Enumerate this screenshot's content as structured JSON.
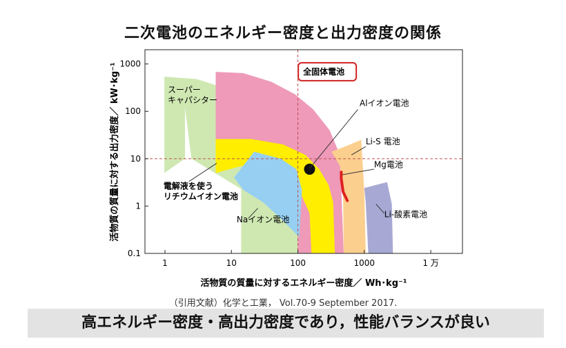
{
  "title": "二次電池のエネルギー密度と出力密度の関係",
  "caption": "（引用文献）化学と工業， Vol.70-9 September 2017.",
  "banner": "高エネルギー密度・高出力密度であり，性能バランスが良い",
  "chart_data": {
    "type": "area",
    "xlabel": "活物質の質量に対するエネルギー密度／ Wh･kg⁻¹",
    "ylabel": "活物質の質量に対する出力密度／ kW･kg⁻¹",
    "x_scale": "log",
    "y_scale": "log",
    "xlim": [
      0.5,
      30000
    ],
    "ylim": [
      0.1,
      2000
    ],
    "x_ticks": [
      {
        "value": 1,
        "label": "1"
      },
      {
        "value": 10,
        "label": "10"
      },
      {
        "value": 100,
        "label": "100"
      },
      {
        "value": 1000,
        "label": "1000"
      },
      {
        "value": 10000,
        "label": "1 万"
      }
    ],
    "y_ticks": [
      {
        "value": 0.1,
        "label": "0.1"
      },
      {
        "value": 1,
        "label": "1"
      },
      {
        "value": 10,
        "label": "10"
      },
      {
        "value": 100,
        "label": "100"
      },
      {
        "value": 1000,
        "label": "1000"
      }
    ],
    "reference_lines": {
      "x": 100,
      "y": 10
    },
    "regions": [
      {
        "name": "スーパーキャパシター",
        "label_lines": [
          "スーパー",
          "キャパシター"
        ],
        "color": "#cfe8b2",
        "polygon": [
          [
            2,
            120
          ],
          [
            2,
            10
          ],
          [
            0.98,
            5
          ],
          [
            0.98,
            540
          ],
          [
            3,
            480
          ],
          [
            10,
            280
          ],
          [
            40,
            90
          ],
          [
            100,
            30
          ],
          [
            180,
            0.1
          ],
          [
            14,
            0.1
          ],
          [
            14,
            2.3
          ],
          [
            2.5,
            10
          ]
        ],
        "label_pos": [
          1.1,
          250
        ]
      },
      {
        "name": "全固体電池",
        "label_lines": [
          "全固体電池"
        ],
        "color": "#ee9ab8",
        "polygon": [
          [
            5.8,
            680
          ],
          [
            15,
            640
          ],
          [
            40,
            420
          ],
          [
            90,
            230
          ],
          [
            170,
            110
          ],
          [
            300,
            40
          ],
          [
            430,
            12
          ],
          [
            490,
            0.1
          ],
          [
            100,
            0.1
          ],
          [
            100,
            5
          ],
          [
            70,
            9
          ],
          [
            35,
            14
          ],
          [
            16,
            20
          ],
          [
            5.8,
            25
          ]
        ],
        "label_pos": [
          120,
          600
        ],
        "boxed": true
      },
      {
        "name": "電解液を使うリチウムイオン電池",
        "label_lines": [
          "電解液を使う",
          "リチウムイオン電池"
        ],
        "color": "#ffee00",
        "polygon": [
          [
            5.8,
            26
          ],
          [
            20,
            26
          ],
          [
            60,
            20
          ],
          [
            130,
            12
          ],
          [
            210,
            6
          ],
          [
            290,
            2.8
          ],
          [
            340,
            1.2
          ],
          [
            360,
            0.1
          ],
          [
            160,
            0.1
          ],
          [
            150,
            0.7
          ],
          [
            100,
            2.5
          ],
          [
            50,
            5
          ],
          [
            20,
            8
          ],
          [
            5.8,
            5
          ]
        ],
        "label_pos": [
          0.95,
          2.3
        ]
      },
      {
        "name": "Naイオン電池",
        "label_lines": [
          "Naイオン電池"
        ],
        "color": "#96cff2",
        "polygon": [
          [
            22,
            14
          ],
          [
            55,
            10
          ],
          [
            95,
            6
          ],
          [
            115,
            2.2
          ],
          [
            105,
            0.22
          ],
          [
            55,
            0.55
          ],
          [
            30,
            1.2
          ],
          [
            15,
            2.2
          ],
          [
            11,
            4
          ]
        ],
        "label_pos": [
          12,
          0.45
        ]
      },
      {
        "name": "Li-S電池",
        "label_lines": [
          "Li-S 電池"
        ],
        "color": "#fbcf8e",
        "polygon": [
          [
            320,
            14
          ],
          [
            560,
            19
          ],
          [
            900,
            25
          ],
          [
            1000,
            2
          ],
          [
            1050,
            0.1
          ],
          [
            490,
            0.1
          ],
          [
            480,
            1.5
          ],
          [
            430,
            7
          ]
        ],
        "label_pos": [
          1050,
          20
        ]
      },
      {
        "name": "Li-酸素電池",
        "label_lines": [
          "Li-酸素電池"
        ],
        "color": "#a7a9d4",
        "polygon": [
          [
            1000,
            2.4
          ],
          [
            2200,
            3.2
          ],
          [
            2600,
            1.1
          ],
          [
            2700,
            0.1
          ],
          [
            1150,
            0.1
          ],
          [
            1050,
            1.2
          ]
        ],
        "label_pos": [
          2000,
          0.58
        ]
      }
    ],
    "series": [
      {
        "name": "Mg電池",
        "type": "line",
        "color": "#e02020",
        "x": [
          450,
          450,
          480,
          555
        ],
        "y": [
          5.2,
          3.8,
          2.0,
          1.3
        ],
        "label_lines": [
          "Mg電池"
        ],
        "label_pos": [
          1400,
          6.5
        ]
      },
      {
        "name": "Alイオン電池",
        "type": "point",
        "color": "#111111",
        "x": 150,
        "y": 6,
        "label_lines": [
          "Alイオン電池"
        ],
        "label_pos": [
          850,
          130
        ]
      }
    ]
  }
}
